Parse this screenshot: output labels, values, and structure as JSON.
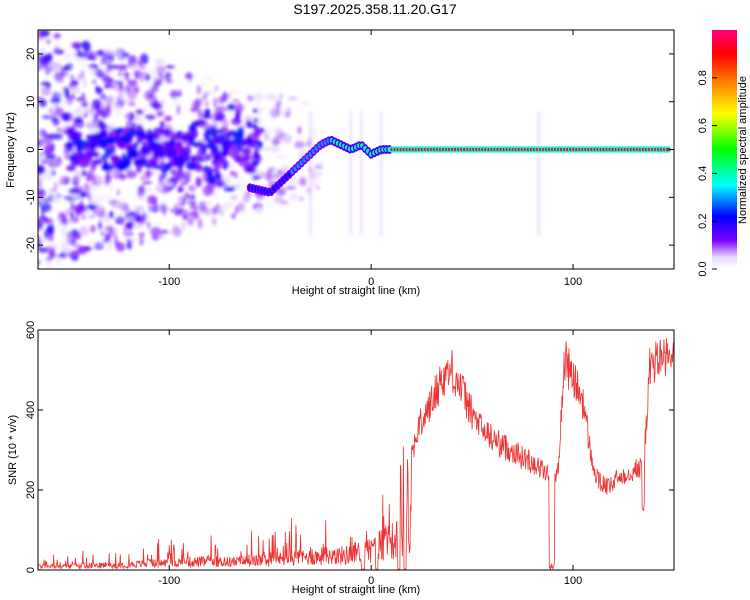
{
  "chart_data": [
    {
      "type": "heatmap",
      "title": "S197.2025.358.11.20.G17",
      "xlabel": "Height of straight line (km)",
      "ylabel": "Frequency (Hz)",
      "xlim": [
        -165,
        150
      ],
      "ylim": [
        -25,
        25
      ],
      "x_ticks": [
        -100,
        0,
        100
      ],
      "y_ticks": [
        -20,
        -10,
        0,
        10,
        20
      ],
      "colorbar": {
        "label": "Normalized spectral amplitude",
        "range": [
          0,
          1
        ],
        "ticks": [
          0.0,
          0.2,
          0.4,
          0.6,
          0.8
        ],
        "tick_labels": [
          "0.0",
          "0.2",
          "0.4",
          "0.6",
          "0.8"
        ],
        "colors": [
          "#ffffff",
          "#7a00ff",
          "#0000ff",
          "#00ffff",
          "#00ff00",
          "#ffff00",
          "#ff8000",
          "#ff0000",
          "#ff0080"
        ]
      },
      "ridge": {
        "description": "peak frequency vs height",
        "x": [
          -60,
          -50,
          -45,
          -40,
          -35,
          -30,
          -25,
          -20,
          -15,
          -10,
          -5,
          0,
          5,
          10,
          20,
          40,
          60,
          80,
          100,
          120,
          148
        ],
        "y": [
          -8,
          -9,
          -7,
          -5,
          -3,
          -1,
          1,
          2,
          1,
          0,
          1,
          -1,
          0,
          0,
          0,
          0,
          0,
          0,
          0,
          0,
          0
        ]
      }
    },
    {
      "type": "line",
      "xlabel": "Height of straight line (km)",
      "ylabel": "SNR (10 * v/v)",
      "xlim": [
        -165,
        150
      ],
      "ylim": [
        0,
        600
      ],
      "x_ticks": [
        -100,
        0,
        100
      ],
      "y_ticks": [
        0,
        200,
        400,
        600
      ],
      "color": "#ee3333",
      "series": [
        {
          "name": "SNR",
          "x": [
            -165,
            -150,
            -140,
            -130,
            -120,
            -110,
            -100,
            -90,
            -80,
            -70,
            -60,
            -50,
            -45,
            -40,
            -35,
            -30,
            -25,
            -20,
            -15,
            -10,
            -5,
            -2,
            0,
            2,
            4,
            6,
            8,
            10,
            12,
            14,
            15,
            16,
            18,
            20,
            22,
            24,
            26,
            30,
            35,
            40,
            45,
            50,
            55,
            60,
            65,
            70,
            75,
            80,
            85,
            87,
            88,
            89,
            90,
            93,
            95,
            96,
            97,
            100,
            105,
            108,
            110,
            113,
            118,
            122,
            126,
            130,
            133,
            135,
            136,
            138,
            140,
            143,
            146,
            150
          ],
          "y": [
            20,
            20,
            25,
            25,
            30,
            35,
            40,
            45,
            45,
            45,
            50,
            55,
            60,
            65,
            70,
            70,
            75,
            80,
            80,
            85,
            100,
            105,
            110,
            115,
            140,
            150,
            150,
            160,
            165,
            175,
            180,
            190,
            250,
            290,
            330,
            360,
            380,
            420,
            480,
            500,
            450,
            390,
            350,
            330,
            310,
            300,
            280,
            270,
            250,
            240,
            230,
            220,
            230,
            260,
            480,
            530,
            510,
            480,
            420,
            320,
            250,
            220,
            205,
            230,
            240,
            250,
            255,
            260,
            350,
            500,
            520,
            530,
            530,
            520
          ]
        }
      ]
    }
  ]
}
